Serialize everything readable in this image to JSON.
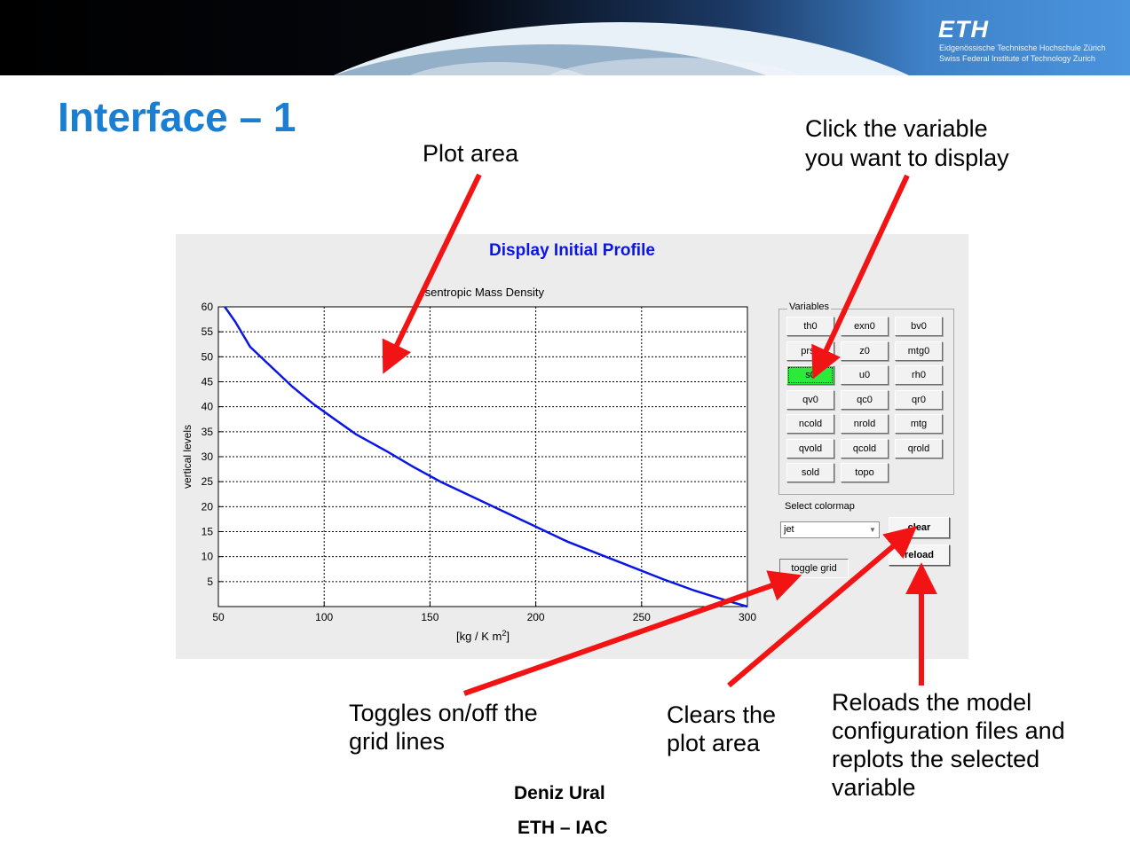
{
  "slide": {
    "title": "Interface – 1",
    "logo": {
      "name": "ETH",
      "subtitle_1": "Eidgenössische Technische Hochschule Zürich",
      "subtitle_2": "Swiss Federal Institute of Technology Zurich"
    },
    "footer": {
      "author": "Deniz Ural",
      "affiliation": "ETH – IAC"
    }
  },
  "callouts": {
    "plot_area": "Plot area",
    "click_variable_1": "Click the variable",
    "click_variable_2": "you want to display",
    "toggle_1": "Toggles on/off the",
    "toggle_2": "grid lines",
    "clear_1": "Clears the",
    "clear_2": "plot area",
    "reload_1": "Reloads the model",
    "reload_2": "configuration files and",
    "reload_3": "replots the selected",
    "reload_4": "variable"
  },
  "gui": {
    "window_title": "Display Initial Profile",
    "variables_label": "Variables",
    "variables": [
      "th0",
      "exn0",
      "bv0",
      "prs0",
      "z0",
      "mtg0",
      "s0",
      "u0",
      "rh0",
      "qv0",
      "qc0",
      "qr0",
      "ncold",
      "nrold",
      "mtg",
      "qvold",
      "qcold",
      "qrold",
      "sold",
      "topo"
    ],
    "selected_variable": "s0",
    "colormap_label": "Select colormap",
    "colormap_value": "jet",
    "clear_label": "clear",
    "reload_label": "reload",
    "toggle_grid_label": "toggle grid"
  },
  "chart_data": {
    "type": "line",
    "title": "Isentropic Mass Density",
    "xlabel": "[kg / K m",
    "xlabel_sup": "2",
    "xlabel_end": "]",
    "ylabel": "vertical levels",
    "xlim": [
      50,
      300
    ],
    "ylim": [
      0,
      60
    ],
    "xticks": [
      50,
      100,
      150,
      200,
      250,
      300
    ],
    "yticks": [
      5,
      10,
      15,
      20,
      25,
      30,
      35,
      40,
      45,
      50,
      55,
      60
    ],
    "grid": true,
    "line_color": "#0a16e6",
    "series": [
      {
        "x": [
          53,
          58,
          65,
          75,
          85,
          95,
          105,
          115,
          130,
          142,
          155,
          170,
          185,
          200,
          215,
          230,
          245,
          260,
          275,
          290,
          300
        ],
        "y": [
          60,
          57,
          52,
          48,
          44,
          40.5,
          37.5,
          34.5,
          31,
          28,
          25,
          22,
          19,
          16,
          13,
          10.5,
          8,
          5.5,
          3.2,
          1.2,
          0
        ]
      }
    ]
  },
  "colors": {
    "title_blue": "#1a7fd2",
    "arrow_red": "#f21414",
    "active_green": "#2bea3c"
  }
}
